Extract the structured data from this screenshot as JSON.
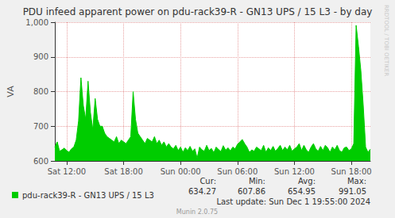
{
  "chart_data": {
    "type": "area",
    "title": "PDU infeed apparent power on pdu-rack39-R - GN13 UPS / 15 L3 - by day",
    "y_label": "VA",
    "categories": [
      null,
      null,
      null,
      null,
      null,
      "Sat 12:00",
      null,
      null,
      null,
      null,
      null,
      null,
      null,
      null,
      null,
      null,
      null,
      null,
      null,
      null,
      null,
      null,
      null,
      null,
      null,
      null,
      null,
      null,
      null,
      "Sat 18:00",
      null,
      null,
      null,
      null,
      null,
      null,
      null,
      null,
      null,
      null,
      null,
      null,
      null,
      null,
      null,
      null,
      null,
      null,
      null,
      null,
      null,
      null,
      null,
      "Sun 00:00",
      null,
      null,
      null,
      null,
      null,
      null,
      null,
      null,
      null,
      null,
      null,
      null,
      null,
      null,
      null,
      null,
      null,
      null,
      null,
      null,
      null,
      null,
      null,
      "Sun 06:00",
      null,
      null,
      null,
      null,
      null,
      null,
      null,
      null,
      null,
      null,
      null,
      null,
      null,
      null,
      null,
      null,
      null,
      null,
      null,
      null,
      null,
      null,
      null,
      "Sun 12:00",
      null,
      null,
      null,
      null,
      null,
      null,
      null,
      null,
      null,
      null,
      null,
      null,
      null,
      null,
      null,
      null,
      null,
      null,
      null,
      null,
      null,
      null,
      null,
      "Sun 18:00",
      null,
      null,
      null,
      null,
      null,
      null,
      null,
      null
    ],
    "series": [
      {
        "name": "pdu-rack39-R - GN13 UPS / 15 L3",
        "color": "#00cc00",
        "values": [
          640,
          655,
          628,
          632,
          637,
          630,
          625,
          635,
          640,
          660,
          715,
          840,
          760,
          720,
          830,
          740,
          690,
          780,
          720,
          700,
          700,
          680,
          670,
          665,
          660,
          655,
          670,
          650,
          660,
          655,
          650,
          660,
          670,
          800,
          720,
          680,
          670,
          660,
          650,
          665,
          660,
          655,
          670,
          650,
          660,
          645,
          655,
          640,
          650,
          640,
          635,
          645,
          630,
          640,
          625,
          638,
          630,
          642,
          628,
          635,
          608,
          640,
          632,
          628,
          645,
          630,
          636,
          624,
          640,
          633,
          627,
          644,
          631,
          638,
          629,
          640,
          635,
          648,
          655,
          662,
          650,
          640,
          625,
          632,
          628,
          640,
          635,
          630,
          645,
          625,
          638,
          630,
          642,
          628,
          636,
          645,
          630,
          640,
          632,
          645,
          628,
          635,
          640,
          650,
          630,
          645,
          632,
          625,
          640,
          650,
          635,
          628,
          642,
          630,
          645,
          638,
          625,
          640,
          632,
          645,
          630,
          625,
          638,
          640,
          630,
          635,
          650,
          991,
          930,
          860,
          760,
          640,
          625,
          634
        ],
        "stats": [
          {
            "label": "Cur:",
            "value": 634.27
          },
          {
            "label": "Min:",
            "value": 607.86
          },
          {
            "label": "Avg:",
            "value": 654.95
          },
          {
            "label": "Max:",
            "value": 991.05
          }
        ]
      }
    ],
    "ylim": [
      600,
      1000
    ],
    "yticks": [
      600,
      700,
      800,
      900,
      1000
    ],
    "grid": true,
    "legend": "bottom-left",
    "last_update": "Last update: Sun Dec 1 19:55:00 2024",
    "footer": "Munin 2.0.75",
    "watermark": "RRDTOOL / TOBI OETIKER"
  }
}
